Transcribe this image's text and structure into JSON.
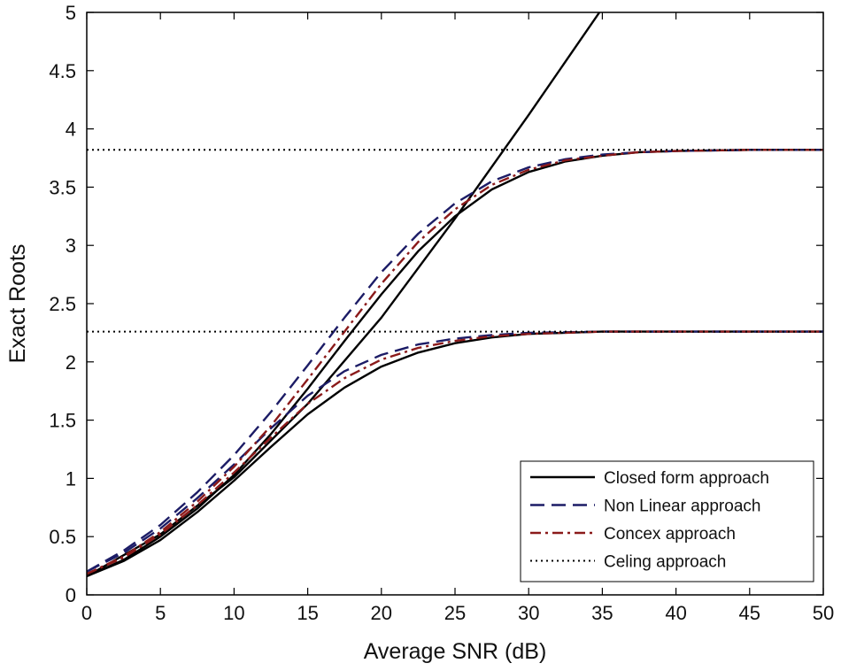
{
  "chart_data": {
    "type": "line",
    "title": "",
    "xlabel": "Average SNR (dB)",
    "ylabel": "Exact Roots",
    "xlim": [
      0,
      50
    ],
    "ylim": [
      0,
      5
    ],
    "xticks": [
      0,
      5,
      10,
      15,
      20,
      25,
      30,
      35,
      40,
      45,
      50
    ],
    "yticks": [
      0,
      0.5,
      1,
      1.5,
      2,
      2.5,
      3,
      3.5,
      4,
      4.5,
      5
    ],
    "xtick_labels": [
      "0",
      "5",
      "10",
      "15",
      "20",
      "25",
      "30",
      "35",
      "40",
      "45",
      "50"
    ],
    "ytick_labels": [
      "0",
      "0.5",
      "1",
      "1.5",
      "2",
      "2.5",
      "3",
      "3.5",
      "4",
      "4.5",
      "5"
    ],
    "grid": false,
    "legend_position": "bottom-right",
    "legend": [
      {
        "label": "Closed form approach",
        "color": "#000000",
        "style": "solid"
      },
      {
        "label": "Non Linear approach",
        "color": "#1c1c66",
        "style": "dashed"
      },
      {
        "label": "Concex approach",
        "color": "#8b1a1a",
        "style": "dashdot"
      },
      {
        "label": "Celing approach",
        "color": "#000000",
        "style": "dotted"
      }
    ],
    "series": [
      {
        "name": "Closed form approach (linear asymptote)",
        "legend_index": 0,
        "x": [
          0,
          5,
          10,
          15,
          20,
          25,
          30,
          34.8
        ],
        "y": [
          0.16,
          0.52,
          1.01,
          1.64,
          2.38,
          3.23,
          4.12,
          5.0
        ]
      },
      {
        "name": "Closed form approach (upper root)",
        "legend_index": 0,
        "x": [
          0,
          2.5,
          5,
          7.5,
          10,
          12.5,
          15,
          17.5,
          20,
          22.5,
          25,
          27.5,
          30,
          32.5,
          35,
          37.5,
          40,
          45,
          50
        ],
        "y": [
          0.16,
          0.3,
          0.5,
          0.74,
          1.03,
          1.38,
          1.77,
          2.18,
          2.58,
          2.95,
          3.25,
          3.48,
          3.63,
          3.72,
          3.77,
          3.8,
          3.81,
          3.82,
          3.82
        ]
      },
      {
        "name": "Closed form approach (lower root)",
        "legend_index": 0,
        "x": [
          0,
          2.5,
          5,
          7.5,
          10,
          12.5,
          15,
          17.5,
          20,
          22.5,
          25,
          27.5,
          30,
          35,
          40,
          45,
          50
        ],
        "y": [
          0.16,
          0.29,
          0.47,
          0.71,
          0.98,
          1.27,
          1.55,
          1.78,
          1.96,
          2.08,
          2.16,
          2.21,
          2.24,
          2.26,
          2.26,
          2.26,
          2.26
        ]
      },
      {
        "name": "Non Linear approach (upper root)",
        "legend_index": 1,
        "x": [
          0,
          2.5,
          5,
          7.5,
          10,
          12.5,
          15,
          17.5,
          20,
          22.5,
          25,
          27.5,
          30,
          32.5,
          35,
          37.5,
          40,
          45,
          50
        ],
        "y": [
          0.2,
          0.38,
          0.6,
          0.88,
          1.2,
          1.57,
          1.97,
          2.38,
          2.77,
          3.1,
          3.36,
          3.55,
          3.67,
          3.74,
          3.78,
          3.8,
          3.81,
          3.82,
          3.82
        ]
      },
      {
        "name": "Non Linear approach (lower root)",
        "legend_index": 1,
        "x": [
          0,
          2.5,
          5,
          7.5,
          10,
          12.5,
          15,
          17.5,
          20,
          22.5,
          25,
          27.5,
          30,
          35,
          40,
          45,
          50
        ],
        "y": [
          0.2,
          0.36,
          0.57,
          0.83,
          1.12,
          1.43,
          1.71,
          1.92,
          2.06,
          2.15,
          2.2,
          2.23,
          2.25,
          2.26,
          2.26,
          2.26,
          2.26
        ]
      },
      {
        "name": "Concex approach (upper root)",
        "legend_index": 2,
        "x": [
          0,
          2.5,
          5,
          7.5,
          10,
          12.5,
          15,
          17.5,
          20,
          22.5,
          25,
          27.5,
          30,
          32.5,
          35,
          37.5,
          40,
          45,
          50
        ],
        "y": [
          0.18,
          0.33,
          0.54,
          0.8,
          1.1,
          1.45,
          1.85,
          2.26,
          2.67,
          3.03,
          3.31,
          3.52,
          3.65,
          3.73,
          3.77,
          3.8,
          3.81,
          3.82,
          3.82
        ]
      },
      {
        "name": "Concex approach (lower root)",
        "legend_index": 2,
        "x": [
          0,
          2.5,
          5,
          7.5,
          10,
          12.5,
          15,
          17.5,
          20,
          22.5,
          25,
          27.5,
          30,
          35,
          40,
          45,
          50
        ],
        "y": [
          0.18,
          0.32,
          0.52,
          0.77,
          1.05,
          1.35,
          1.64,
          1.86,
          2.02,
          2.12,
          2.18,
          2.22,
          2.24,
          2.26,
          2.26,
          2.26,
          2.26
        ]
      },
      {
        "name": "Celing approach (upper)",
        "legend_index": 3,
        "x": [
          0,
          50
        ],
        "y": [
          3.82,
          3.82
        ]
      },
      {
        "name": "Celing approach (lower)",
        "legend_index": 3,
        "x": [
          0,
          50
        ],
        "y": [
          2.26,
          2.26
        ]
      }
    ]
  }
}
